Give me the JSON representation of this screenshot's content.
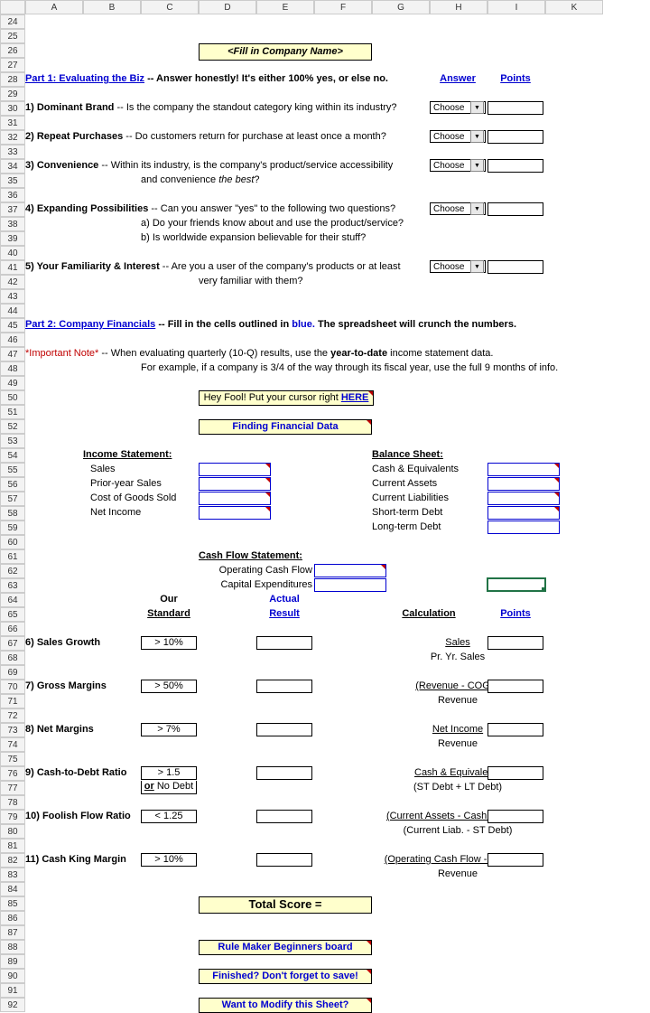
{
  "columns": [
    "A",
    "B",
    "C",
    "D",
    "E",
    "F",
    "G",
    "H",
    "I",
    "K"
  ],
  "row_start": 24,
  "row_end": 92,
  "title_box": "<Fill in Company Name>",
  "part1": {
    "heading": "Part 1:  Evaluating the Biz",
    "heading_tail": " -- Answer honestly!  It's either 100% yes, or else no.",
    "answer_hdr": "Answer",
    "points_hdr": "Points",
    "choose": "Choose",
    "q1_lead": "1)  Dominant Brand ",
    "q1_tail": " --  Is the company the standout category king within its industry?",
    "q2_lead": "2)  Repeat Purchases",
    "q2_tail": " -- Do customers return for purchase at least once a month?",
    "q3_lead": "3)  Convenience",
    "q3_tail": " -- Within its industry, is the company's product/service accessibility",
    "q3_line2_a": "and convenience ",
    "q3_line2_b": "the best",
    "q3_line2_c": "?",
    "q4_lead": "4)  Expanding Possibilities",
    "q4_tail": " -- Can you answer \"yes\" to the following two questions?",
    "q4_line2": "a) Do your friends know about and use the product/service?",
    "q4_line3": "b) Is worldwide expansion believable for their stuff?",
    "q5_lead": "5)  Your Familiarity & Interest",
    "q5_tail": " -- Are you a user of the company's products or at least",
    "q5_line2": "very familiar with them?"
  },
  "part2": {
    "heading": "Part 2:  Company Financials",
    "heading_tail_a": " -- Fill in the cells outlined in ",
    "heading_blue": "blue.",
    "heading_tail_b": " The spreadsheet will crunch the numbers.",
    "note_lead": "*Important Note*",
    "note_tail": " -- When evaluating quarterly (10-Q) results, use the ",
    "note_bold": "year-to-date",
    "note_tail2": " income statement data.",
    "note_line2": "For example, if a company is 3/4 of the way through its fiscal year, use the full 9 months of info.",
    "heyfool_a": "Hey Fool!  Put your cursor right ",
    "heyfool_b": "HERE",
    "finding": "Finding Financial Data",
    "income_hdr": "Income Statement:",
    "income_items": [
      "Sales",
      "Prior-year Sales",
      "Cost of Goods Sold",
      "Net Income"
    ],
    "balance_hdr": "Balance Sheet:",
    "balance_items": [
      "Cash & Equivalents",
      "Current Assets",
      "Current Liabilities",
      "Short-term Debt",
      "Long-term Debt"
    ],
    "cashflow_hdr": "Cash Flow Statement:",
    "cashflow_items": [
      "Operating Cash Flow",
      "Capital Expenditures"
    ]
  },
  "metrics": {
    "our_std": "Our",
    "our_std2": "Standard",
    "actual": "Actual",
    "actual2": "Result",
    "calc": "Calculation",
    "points": "Points",
    "rows": [
      {
        "n": "6)  Sales Growth",
        "std": "> 10%",
        "calc1": "Sales",
        "calc2": "Pr. Yr. Sales",
        "calc1_u": true
      },
      {
        "n": "7)  Gross Margins",
        "std": "> 50%",
        "calc1": "(Revenue - COGS)",
        "calc2": "Revenue",
        "calc1_u": true
      },
      {
        "n": "8)  Net Margins",
        "std": "> 7%",
        "calc1": "Net Income",
        "calc2": "Revenue",
        "calc1_u": true
      },
      {
        "n": "9)  Cash-to-Debt Ratio",
        "std": "> 1.5",
        "std2": "or No Debt",
        "calc1": "Cash & Equivalents",
        "calc2": "(ST Debt + LT Debt)",
        "calc1_u": true,
        "std2_u": true
      },
      {
        "n": "10)  Foolish Flow Ratio",
        "std": "< 1.25",
        "calc1": "(Current Assets - Cash & Equiv.)",
        "calc2": "(Current Liab. - ST Debt)",
        "calc1_u": true
      },
      {
        "n": "11) Cash King Margin",
        "std": "> 10%",
        "calc1": "(Operating Cash Flow - Cap. Ex.)",
        "calc2": "Revenue",
        "calc1_u": true
      }
    ]
  },
  "footer": {
    "total": "Total Score =",
    "box1": "Rule Maker Beginners board",
    "box2": "Finished?  Don't forget to save!",
    "box3": "Want to Modify this Sheet?"
  },
  "colors": {
    "yellow": "#ffffcc",
    "blue": "#0000d0",
    "red": "#c00000",
    "green_sel": "#217346"
  }
}
